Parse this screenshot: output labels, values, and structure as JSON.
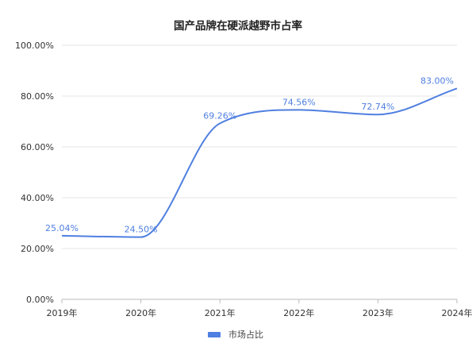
{
  "chart_data": {
    "type": "line",
    "title": "国产品牌在硬派越野市占率",
    "xlabel": "",
    "ylabel": "",
    "categories": [
      "2019年",
      "2020年",
      "2021年",
      "2022年",
      "2023年",
      "2024年"
    ],
    "series": [
      {
        "name": "市场占比",
        "values": [
          25.04,
          24.5,
          69.26,
          74.56,
          72.74,
          83.0
        ],
        "labels": [
          "25.04%",
          "24.50%",
          "69.26%",
          "74.56%",
          "72.74%",
          "83.00%"
        ],
        "color": "#4f7fe0"
      }
    ],
    "ylim": [
      0,
      100
    ],
    "yticks": [
      "0.00%",
      "20.00%",
      "40.00%",
      "60.00%",
      "80.00%",
      "100.00%"
    ],
    "grid": true,
    "smooth": true,
    "legend_position": "bottom-center"
  }
}
